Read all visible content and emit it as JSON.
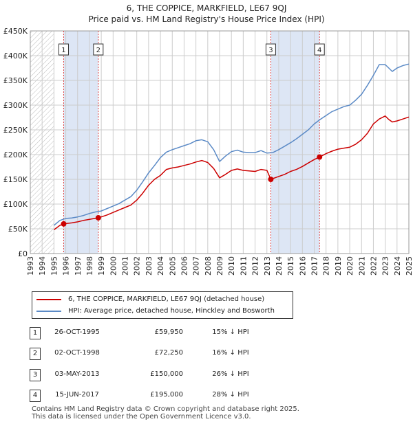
{
  "title_line1": "6, THE COPPICE, MARKFIELD, LE67 9QJ",
  "title_line2": "Price paid vs. HM Land Registry's House Price Index (HPI)",
  "colors": {
    "property": "#cc0000",
    "hpi": "#5b8ac6",
    "shade": "#dde6f5",
    "grid": "#cccccc",
    "marker_line": "#dd4444"
  },
  "chart_data": {
    "type": "line",
    "title": "Price paid vs. HM Land Registry's House Price Index (HPI)",
    "xlabel": "",
    "ylabel": "",
    "xlim": [
      1993,
      2025
    ],
    "ylim": [
      0,
      450000
    ],
    "grid": true,
    "y_ticks": [
      {
        "value": 0,
        "label": "£0"
      },
      {
        "value": 50000,
        "label": "£50K"
      },
      {
        "value": 100000,
        "label": "£100K"
      },
      {
        "value": 150000,
        "label": "£150K"
      },
      {
        "value": 200000,
        "label": "£200K"
      },
      {
        "value": 250000,
        "label": "£250K"
      },
      {
        "value": 300000,
        "label": "£300K"
      },
      {
        "value": 350000,
        "label": "£350K"
      },
      {
        "value": 400000,
        "label": "£400K"
      },
      {
        "value": 450000,
        "label": "£450K"
      }
    ],
    "x_ticks": [
      "1993",
      "1994",
      "1995",
      "1996",
      "1997",
      "1998",
      "1999",
      "2000",
      "2001",
      "2002",
      "2003",
      "2004",
      "2005",
      "2006",
      "2007",
      "2008",
      "2009",
      "2010",
      "2011",
      "2012",
      "2013",
      "2014",
      "2015",
      "2016",
      "2017",
      "2018",
      "2019",
      "2020",
      "2021",
      "2022",
      "2023",
      "2024",
      "2025"
    ],
    "data_start": 1995.0,
    "shaded_bands": [
      [
        1995.82,
        1998.75
      ],
      [
        2013.33,
        2017.45
      ]
    ],
    "series": [
      {
        "name": "6, THE COPPICE, MARKFIELD, LE67 9QJ (detached house)",
        "color": "#cc0000",
        "points": [
          [
            1995.0,
            48000
          ],
          [
            1995.5,
            57000
          ],
          [
            1995.82,
            59950
          ],
          [
            1996.5,
            62000
          ],
          [
            1997.0,
            64000
          ],
          [
            1997.5,
            67000
          ],
          [
            1998.0,
            69000
          ],
          [
            1998.75,
            72250
          ],
          [
            1999.0,
            74000
          ],
          [
            1999.5,
            78000
          ],
          [
            2000.0,
            83000
          ],
          [
            2000.5,
            88000
          ],
          [
            2001.0,
            93000
          ],
          [
            2001.5,
            98000
          ],
          [
            2002.0,
            108000
          ],
          [
            2002.5,
            122000
          ],
          [
            2003.0,
            138000
          ],
          [
            2003.5,
            150000
          ],
          [
            2004.0,
            158000
          ],
          [
            2004.5,
            170000
          ],
          [
            2005.0,
            173000
          ],
          [
            2005.5,
            175000
          ],
          [
            2006.0,
            178000
          ],
          [
            2006.5,
            181000
          ],
          [
            2007.0,
            185000
          ],
          [
            2007.5,
            188000
          ],
          [
            2008.0,
            184000
          ],
          [
            2008.5,
            172000
          ],
          [
            2009.0,
            153000
          ],
          [
            2009.5,
            160000
          ],
          [
            2010.0,
            168000
          ],
          [
            2010.5,
            171000
          ],
          [
            2011.0,
            168000
          ],
          [
            2011.5,
            167000
          ],
          [
            2012.0,
            166000
          ],
          [
            2012.5,
            170000
          ],
          [
            2013.0,
            168000
          ],
          [
            2013.33,
            150000
          ],
          [
            2013.8,
            154000
          ],
          [
            2014.5,
            160000
          ],
          [
            2015.0,
            166000
          ],
          [
            2015.5,
            170000
          ],
          [
            2016.0,
            176000
          ],
          [
            2016.5,
            183000
          ],
          [
            2017.0,
            190000
          ],
          [
            2017.45,
            195000
          ],
          [
            2018.0,
            202000
          ],
          [
            2018.5,
            207000
          ],
          [
            2019.0,
            211000
          ],
          [
            2019.5,
            213000
          ],
          [
            2020.0,
            215000
          ],
          [
            2020.5,
            221000
          ],
          [
            2021.0,
            230000
          ],
          [
            2021.5,
            243000
          ],
          [
            2022.0,
            262000
          ],
          [
            2022.5,
            272000
          ],
          [
            2023.0,
            278000
          ],
          [
            2023.3,
            271000
          ],
          [
            2023.6,
            266000
          ],
          [
            2024.0,
            268000
          ],
          [
            2024.5,
            272000
          ],
          [
            2025.0,
            276000
          ]
        ]
      },
      {
        "name": "HPI: Average price, detached house, Hinckley and Bosworth",
        "color": "#5b8ac6",
        "points": [
          [
            1995.0,
            57000
          ],
          [
            1995.5,
            67000
          ],
          [
            1996.0,
            71000
          ],
          [
            1996.5,
            72000
          ],
          [
            1997.0,
            74000
          ],
          [
            1997.5,
            77000
          ],
          [
            1998.0,
            81000
          ],
          [
            1998.5,
            84000
          ],
          [
            1999.0,
            86000
          ],
          [
            1999.5,
            91000
          ],
          [
            2000.0,
            96000
          ],
          [
            2000.5,
            101000
          ],
          [
            2001.0,
            108000
          ],
          [
            2001.5,
            115000
          ],
          [
            2002.0,
            128000
          ],
          [
            2002.5,
            145000
          ],
          [
            2003.0,
            163000
          ],
          [
            2003.5,
            178000
          ],
          [
            2004.0,
            194000
          ],
          [
            2004.5,
            205000
          ],
          [
            2005.0,
            210000
          ],
          [
            2005.5,
            214000
          ],
          [
            2006.0,
            218000
          ],
          [
            2006.5,
            222000
          ],
          [
            2007.0,
            228000
          ],
          [
            2007.5,
            230000
          ],
          [
            2008.0,
            226000
          ],
          [
            2008.5,
            210000
          ],
          [
            2009.0,
            186000
          ],
          [
            2009.5,
            197000
          ],
          [
            2010.0,
            206000
          ],
          [
            2010.5,
            209000
          ],
          [
            2011.0,
            205000
          ],
          [
            2011.5,
            204000
          ],
          [
            2012.0,
            204000
          ],
          [
            2012.5,
            208000
          ],
          [
            2013.0,
            203000
          ],
          [
            2013.5,
            204000
          ],
          [
            2014.0,
            210000
          ],
          [
            2014.5,
            217000
          ],
          [
            2015.0,
            224000
          ],
          [
            2015.5,
            232000
          ],
          [
            2016.0,
            241000
          ],
          [
            2016.5,
            250000
          ],
          [
            2017.0,
            262000
          ],
          [
            2017.5,
            271000
          ],
          [
            2018.0,
            279000
          ],
          [
            2018.5,
            287000
          ],
          [
            2019.0,
            292000
          ],
          [
            2019.5,
            297000
          ],
          [
            2020.0,
            300000
          ],
          [
            2020.5,
            310000
          ],
          [
            2021.0,
            322000
          ],
          [
            2021.5,
            340000
          ],
          [
            2022.0,
            360000
          ],
          [
            2022.5,
            382000
          ],
          [
            2023.0,
            382000
          ],
          [
            2023.3,
            375000
          ],
          [
            2023.6,
            368000
          ],
          [
            2024.0,
            375000
          ],
          [
            2024.5,
            380000
          ],
          [
            2025.0,
            383000
          ]
        ]
      }
    ],
    "sale_markers": [
      {
        "label": "1",
        "x": 1995.82,
        "y": 59950
      },
      {
        "label": "2",
        "x": 1998.75,
        "y": 72250
      },
      {
        "label": "3",
        "x": 2013.33,
        "y": 150000
      },
      {
        "label": "4",
        "x": 2017.45,
        "y": 195000
      }
    ]
  },
  "legend": {
    "property_label": "6, THE COPPICE, MARKFIELD, LE67 9QJ (detached house)",
    "hpi_label": "HPI: Average price, detached house, Hinckley and Bosworth"
  },
  "sales": [
    {
      "num": "1",
      "date": "26-OCT-1995",
      "price": "£59,950",
      "hpi": "15% ↓ HPI"
    },
    {
      "num": "2",
      "date": "02-OCT-1998",
      "price": "£72,250",
      "hpi": "16% ↓ HPI"
    },
    {
      "num": "3",
      "date": "03-MAY-2013",
      "price": "£150,000",
      "hpi": "26% ↓ HPI"
    },
    {
      "num": "4",
      "date": "15-JUN-2017",
      "price": "£195,000",
      "hpi": "28% ↓ HPI"
    }
  ],
  "footer": {
    "line1": "Contains HM Land Registry data © Crown copyright and database right 2025.",
    "line2": "This data is licensed under the Open Government Licence v3.0."
  }
}
